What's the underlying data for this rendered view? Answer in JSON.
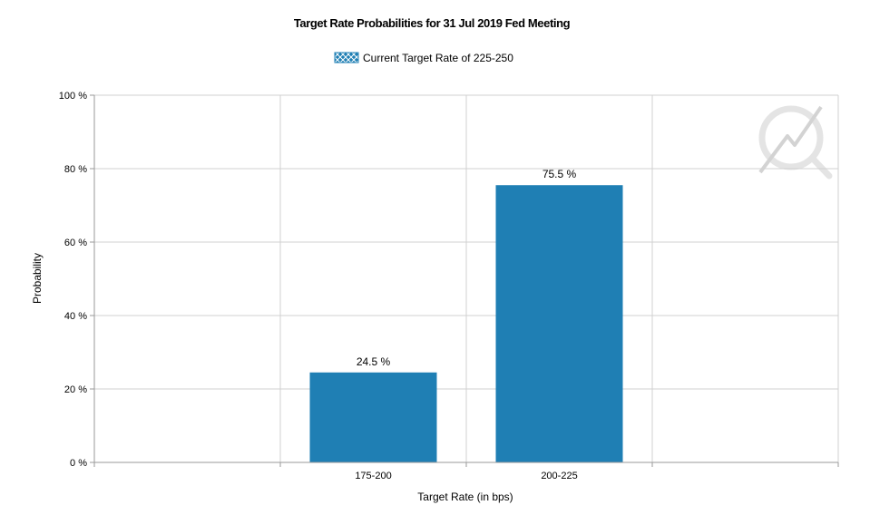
{
  "chart_data": {
    "type": "bar",
    "title": "Target Rate Probabilities for 31 Jul 2019 Fed Meeting",
    "legend": {
      "label": "Current Target Rate of 225-250",
      "placement": "top-center"
    },
    "xlabel": "Target Rate (in bps)",
    "ylabel": "Probability",
    "categories": [
      "",
      "175-200",
      "200-225",
      ""
    ],
    "series": [
      {
        "values": [
          null,
          24.5,
          75.5,
          null
        ]
      }
    ],
    "data_labels": [
      "",
      "24.5 %",
      "75.5 %",
      ""
    ],
    "y_ticks": [
      "0 %",
      "20 %",
      "40 %",
      "60 %",
      "80 %",
      "100 %"
    ],
    "ylim": [
      0,
      100
    ],
    "grid": true,
    "colors": {
      "bar": "#1f7fb4",
      "grid": "#d0d0d0",
      "axis": "#9a9a9a",
      "watermark": "#d8d8d8"
    }
  }
}
